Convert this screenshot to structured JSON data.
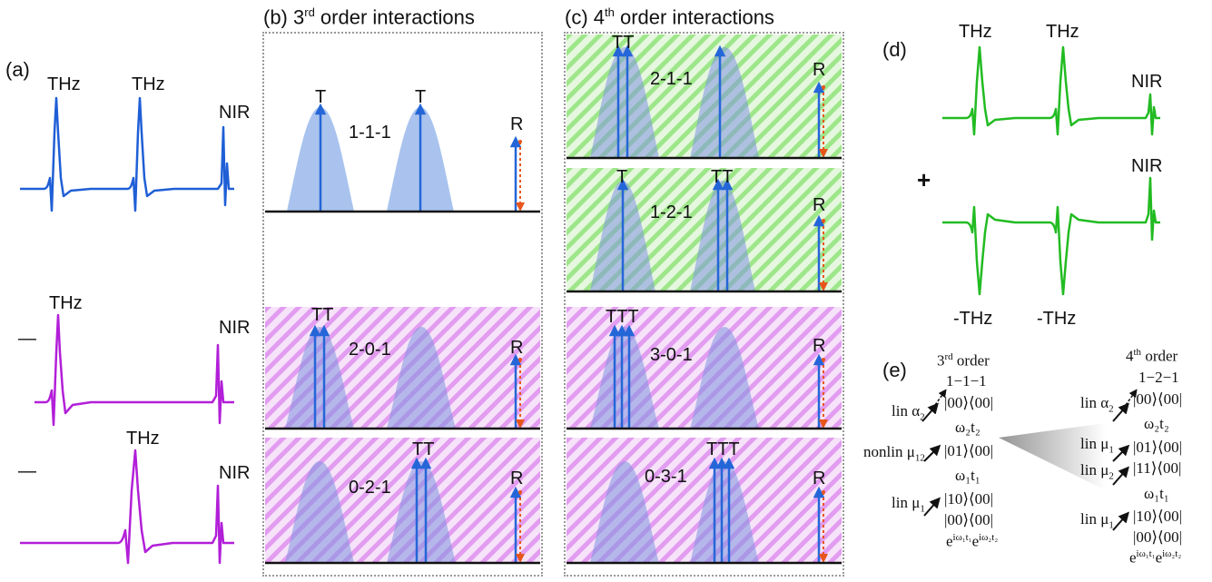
{
  "panel_a": {
    "label": "(a)",
    "rows": [
      {
        "prefix": "",
        "pulse1": "THz",
        "pulse2": "THz",
        "probe": "NIR"
      },
      {
        "prefix": "—",
        "pulse1": "THz",
        "pulse2": "",
        "probe": "NIR"
      },
      {
        "prefix": "—",
        "pulse1": "",
        "pulse2": "THz",
        "probe": "NIR"
      }
    ]
  },
  "panel_b": {
    "title_pre": "(b) 3",
    "title_sup": "rd",
    "title_post": " order interactions",
    "subpanels": [
      {
        "code": "1-1-1",
        "left_top": "T",
        "right_top": "T",
        "readout": "R"
      },
      {
        "code": "2-0-1",
        "left_top": "TT",
        "right_top": "",
        "readout": "R"
      },
      {
        "code": "0-2-1",
        "left_top": "",
        "right_top": "TT",
        "readout": "R"
      }
    ]
  },
  "panel_c": {
    "title_pre": "(c) 4",
    "title_sup": "th",
    "title_post": " order interactions",
    "subpanels": [
      {
        "code": "2-1-1",
        "left_top": "TT",
        "right_top": "",
        "readout": "R"
      },
      {
        "code": "1-2-1",
        "left_top": "T",
        "right_top": "TT",
        "readout": "R"
      },
      {
        "code": "3-0-1",
        "left_top": "TTT",
        "right_top": "",
        "readout": "R"
      },
      {
        "code": "0-3-1",
        "left_top": "",
        "right_top": "TTT",
        "readout": "R"
      }
    ]
  },
  "panel_d": {
    "label": "(d)",
    "plus": "+",
    "top": {
      "pulse1": "THz",
      "pulse2": "THz",
      "probe": "NIR"
    },
    "bottom": {
      "pulse1": "-THz",
      "pulse2": "-THz",
      "probe": "NIR"
    }
  },
  "panel_e": {
    "label": "(e)",
    "left": {
      "order_pre": "3",
      "order_sup": "rd",
      "order_post": " order",
      "code": "1−1−1",
      "lin": "lin",
      "nonlin": "nonlin",
      "alpha": "α",
      "alpha_sub": "2",
      "mu12": "μ",
      "mu12_sub": "12",
      "mu1": "μ",
      "mu1_sub": "1",
      "state_00": "|00⟩⟨00|",
      "state_01": "|01⟩⟨00|",
      "state_10": "|10⟩⟨00|",
      "omega2t2": "ω₂t₂",
      "omega1t1": "ω₁t₁",
      "phase": "e",
      "phase_exp1": "iω₁t₁",
      "phase_exp2": "iω₂t₂"
    },
    "right": {
      "order_pre": "4",
      "order_sup": "th",
      "order_post": " order",
      "code": "1−2−1",
      "lin": "lin",
      "alpha": "α",
      "alpha_sub": "2",
      "mu1": "μ",
      "mu1_sub": "1",
      "mu2": "μ",
      "mu2_sub": "2",
      "state_00": "|00⟩⟨00|",
      "state_01": "|01⟩⟨00|",
      "state_11": "|11⟩⟨00|",
      "state_10": "|10⟩⟨00|",
      "omega2t2": "ω₂t₂",
      "omega1t1": "ω₁t₁",
      "phase": "e",
      "phase_exp1": "iω₁t₁",
      "phase_exp2": "iω₂t₂"
    }
  },
  "colors": {
    "blue": "#1f5fd6",
    "magenta": "#b21fd8",
    "green": "#22bb22",
    "envelope": "#a9c3ee",
    "arrow_blue": "#2466d8",
    "probe_red": "#e8551a",
    "hatch_green": "#9ee68a",
    "hatch_magenta": "#e29cf0"
  }
}
